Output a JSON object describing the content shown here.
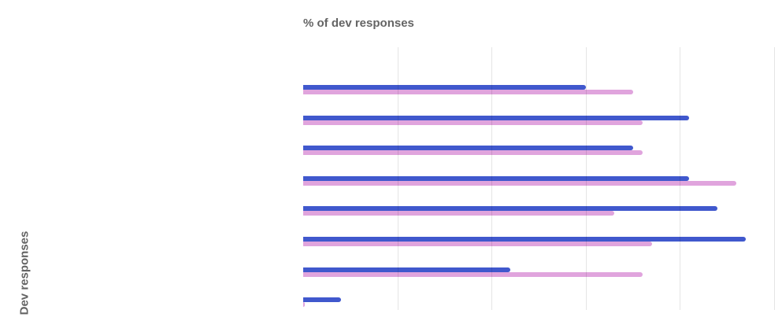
{
  "header": {
    "title": "% of dev responses"
  },
  "y_axis": {
    "label": "Dev responses"
  },
  "colors": {
    "series_blue": "#4058CD",
    "series_pink": "#E0A4DD",
    "text_gray": "#646464",
    "gridline": "rgba(0,0,0,0.10)",
    "background": "#ffffff"
  },
  "chart_data": {
    "type": "bar",
    "orientation": "horizontal",
    "title": "% of dev responses",
    "xlabel": "",
    "ylabel": "Dev responses",
    "xlim": [
      0,
      100
    ],
    "grid": true,
    "gridline_interval_pct": 20,
    "axis_tick_labels_visible": false,
    "category_labels_visible": false,
    "legend_visible": false,
    "categories": [
      "",
      "",
      "",
      "",
      "",
      "",
      "",
      ""
    ],
    "series": [
      {
        "name": "series-blue",
        "color": "#4058CD",
        "values": [
          60,
          82,
          70,
          82,
          88,
          94,
          44,
          8
        ]
      },
      {
        "name": "series-pink",
        "color": "#E0A4DD",
        "values": [
          70,
          72,
          72,
          92,
          66,
          74,
          72,
          0.3
        ]
      }
    ]
  }
}
